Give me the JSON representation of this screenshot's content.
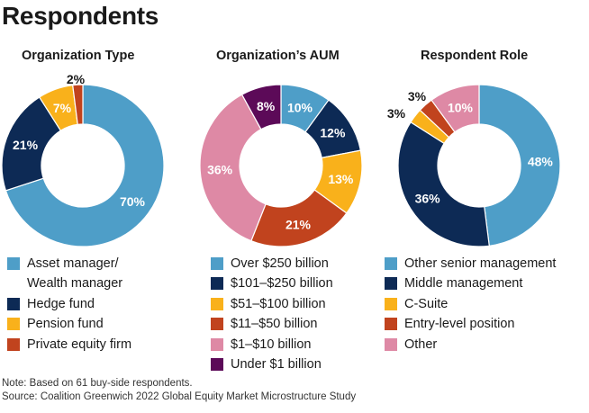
{
  "title": "Respondents",
  "colors": {
    "light_blue": "#4e9ec8",
    "navy": "#0d2a55",
    "yellow": "#f9b11b",
    "orange_red": "#c1431e",
    "pink": "#de89a5",
    "purple": "#5c0a58",
    "white": "#ffffff"
  },
  "chart_data": [
    {
      "type": "pie",
      "title": "Organization Type",
      "categories": [
        "Asset manager/\nWealth manager",
        "Hedge fund",
        "Pension fund",
        "Private equity firm"
      ],
      "values": [
        70,
        21,
        7,
        2
      ],
      "labels": [
        "70%",
        "21%",
        "7%",
        "2%"
      ],
      "colors": [
        "#4e9ec8",
        "#0d2a55",
        "#f9b11b",
        "#c1431e"
      ]
    },
    {
      "type": "pie",
      "title": "Organization’s AUM",
      "categories": [
        "Over $250 billion",
        "$101–$250 billion",
        "$51–$100 billion",
        "$11–$50 billion",
        "$1–$10 billion",
        "Under $1 billion"
      ],
      "values": [
        10,
        12,
        13,
        21,
        36,
        8
      ],
      "labels": [
        "10%",
        "12%",
        "13%",
        "21%",
        "36%",
        "8%"
      ],
      "colors": [
        "#4e9ec8",
        "#0d2a55",
        "#f9b11b",
        "#c1431e",
        "#de89a5",
        "#5c0a58"
      ]
    },
    {
      "type": "pie",
      "title": "Respondent Role",
      "categories": [
        "Other senior management",
        "Middle management",
        "C-Suite",
        "Entry-level position",
        "Other"
      ],
      "values": [
        48,
        36,
        3,
        3,
        10
      ],
      "labels": [
        "48%",
        "36%",
        "3%",
        "3%",
        "10%"
      ],
      "colors": [
        "#4e9ec8",
        "#0d2a55",
        "#f9b11b",
        "#c1431e",
        "#de89a5"
      ]
    }
  ],
  "footer": {
    "note": "Note: Based on 61 buy-side respondents.",
    "source": "Source: Coalition Greenwich 2022 Global Equity Market Microstructure Study"
  }
}
